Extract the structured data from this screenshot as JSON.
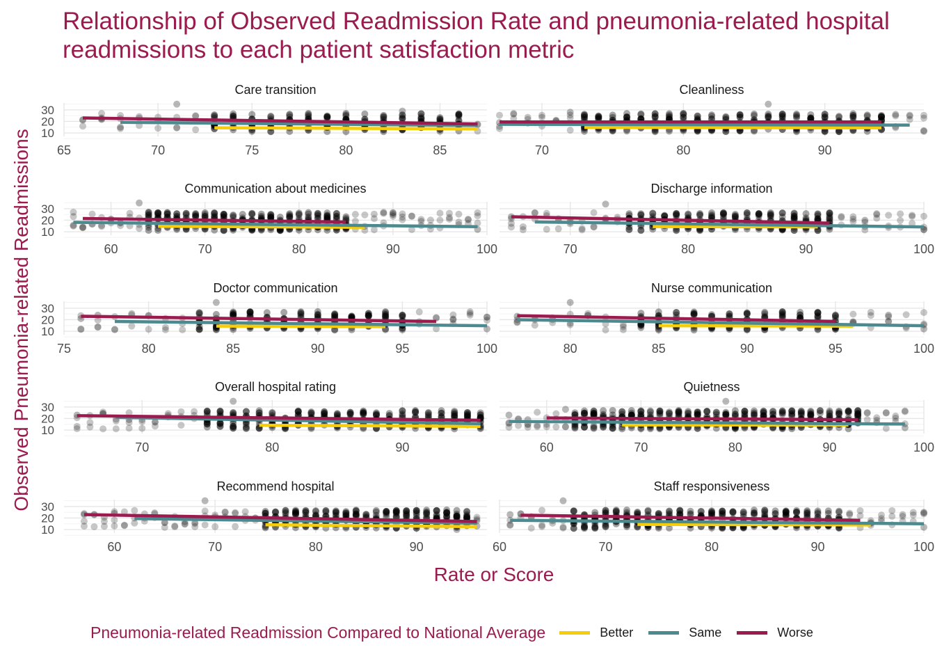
{
  "title_lines": [
    "Relationship of Observed Readmission Rate and pneumonia-related hospital",
    "readmissions to each patient satisfaction metric"
  ],
  "legend": {
    "title": "Pneumonia-related Readmission Compared to National Average",
    "items": [
      {
        "label": "Better",
        "color": "#F5CD0D"
      },
      {
        "label": "Same",
        "color": "#4D8A8F"
      },
      {
        "label": "Worse",
        "color": "#9B1B4F"
      }
    ]
  },
  "colors": {
    "accent": "#9B1B4F",
    "points": "#000000",
    "grid": "#EBEBEB"
  },
  "chart_data": {
    "type": "scatter",
    "title": "Relationship of Observed Readmission Rate and pneumonia-related hospital readmissions to each patient satisfaction metric",
    "xlabel": "Rate or Score",
    "ylabel": "Observed Pneumonia-related Readmissions",
    "grid": true,
    "legend_position": "bottom",
    "y_ticks": [
      10,
      20,
      30
    ],
    "ylim": [
      7,
      36
    ],
    "panels": [
      {
        "title": "Care transition",
        "xlim": [
          65,
          87.5
        ],
        "xticks": [
          65,
          70,
          75,
          80,
          85
        ],
        "points": {
          "x_range": [
            66,
            87
          ],
          "dense_range": [
            73,
            86
          ],
          "outliers": [
            [
              71,
              35
            ],
            [
              83,
              29
            ],
            [
              68,
              15
            ],
            [
              67,
              23
            ],
            [
              86,
              24
            ]
          ]
        },
        "lines": {
          "Better": [
            [
              73,
              14.5
            ],
            [
              87,
              13.5
            ]
          ],
          "Same": [
            [
              68,
              19.2
            ],
            [
              87,
              16.5
            ]
          ],
          "Worse": [
            [
              66,
              23
            ],
            [
              87,
              17.8
            ]
          ]
        }
      },
      {
        "title": "Cleanliness",
        "xlim": [
          67,
          97
        ],
        "xticks": [
          70,
          80,
          90
        ],
        "points": {
          "x_range": [
            67,
            97
          ],
          "dense_range": [
            73,
            94
          ],
          "outliers": [
            [
              86,
              35
            ],
            [
              95,
              26
            ],
            [
              67,
              19
            ],
            [
              97,
              12
            ],
            [
              72,
              28
            ]
          ]
        },
        "lines": {
          "Better": [
            [
              73,
              14.8
            ],
            [
              94,
              14.5
            ]
          ],
          "Same": [
            [
              67,
              17.5
            ],
            [
              96,
              16.8
            ]
          ],
          "Worse": [
            [
              67,
              19.5
            ],
            [
              94,
              19.5
            ]
          ]
        }
      },
      {
        "title": "Communication about medicines",
        "xlim": [
          55,
          100
        ],
        "xticks": [
          60,
          70,
          80,
          90,
          100
        ],
        "points": {
          "x_range": [
            56,
            99
          ],
          "dense_range": [
            64,
            85
          ],
          "outliers": [
            [
              56,
              15
            ],
            [
              99,
              12
            ],
            [
              89,
              26
            ],
            [
              90,
              25
            ],
            [
              63,
              35
            ]
          ]
        },
        "lines": {
          "Better": [
            [
              65,
              14.8
            ],
            [
              87,
              13.8
            ]
          ],
          "Same": [
            [
              56,
              18.2
            ],
            [
              99,
              14.4
            ]
          ],
          "Worse": [
            [
              57,
              21.5
            ],
            [
              85,
              18.5
            ]
          ]
        }
      },
      {
        "title": "Discharge information",
        "xlim": [
          64,
          100
        ],
        "xticks": [
          70,
          80,
          90,
          100
        ],
        "points": {
          "x_range": [
            65,
            100
          ],
          "dense_range": [
            75,
            92
          ],
          "outliers": [
            [
              65,
              23
            ],
            [
              100,
              12
            ],
            [
              95,
              20
            ],
            [
              87,
              25
            ],
            [
              73,
              34
            ]
          ]
        },
        "lines": {
          "Better": [
            [
              77,
              14.5
            ],
            [
              91,
              14.2
            ]
          ],
          "Same": [
            [
              67,
              18.5
            ],
            [
              100,
              14.2
            ]
          ],
          "Worse": [
            [
              65,
              23
            ],
            [
              92,
              17.5
            ]
          ]
        }
      },
      {
        "title": "Doctor communication",
        "xlim": [
          75,
          100
        ],
        "xticks": [
          75,
          80,
          85,
          90,
          95,
          100
        ],
        "points": {
          "x_range": [
            76,
            100
          ],
          "dense_range": [
            83,
            95
          ],
          "outliers": [
            [
              76,
              21
            ],
            [
              84,
              35
            ],
            [
              100,
              12
            ],
            [
              98,
              20
            ],
            [
              77,
              24
            ]
          ]
        },
        "lines": {
          "Better": [
            [
              84,
              14.5
            ],
            [
              94,
              14
            ]
          ],
          "Same": [
            [
              78,
              18.5
            ],
            [
              100,
              14.8
            ]
          ],
          "Worse": [
            [
              76,
              23
            ],
            [
              97,
              18.5
            ]
          ]
        }
      },
      {
        "title": "Nurse communication",
        "xlim": [
          76,
          100
        ],
        "xticks": [
          80,
          85,
          90,
          95,
          100
        ],
        "points": {
          "x_range": [
            77,
            100
          ],
          "dense_range": [
            84,
            95
          ],
          "outliers": [
            [
              80,
              35
            ],
            [
              77,
              23
            ],
            [
              100,
              12
            ],
            [
              98,
              24
            ],
            [
              96,
              18
            ]
          ]
        },
        "lines": {
          "Better": [
            [
              85,
              14.8
            ],
            [
              96,
              14.4
            ]
          ],
          "Same": [
            [
              77,
              20
            ],
            [
              100,
              14.8
            ]
          ],
          "Worse": [
            [
              77,
              23.5
            ],
            [
              95,
              18.5
            ]
          ]
        }
      },
      {
        "title": "Overall hospital rating",
        "xlim": [
          64,
          96.5
        ],
        "xticks": [
          70,
          80,
          90
        ],
        "points": {
          "x_range": [
            65,
            96
          ],
          "dense_range": [
            75,
            96
          ],
          "outliers": [
            [
              77,
              35
            ],
            [
              65,
              23
            ],
            [
              96,
              12
            ],
            [
              67,
              24
            ],
            [
              69,
              19
            ]
          ]
        },
        "lines": {
          "Better": [
            [
              79,
              14.2
            ],
            [
              96,
              13.2
            ]
          ],
          "Same": [
            [
              68,
              21
            ],
            [
              96,
              15.5
            ]
          ],
          "Worse": [
            [
              65,
              22.5
            ],
            [
              96,
              18.5
            ]
          ]
        }
      },
      {
        "title": "Quietness",
        "xlim": [
          55,
          100
        ],
        "xticks": [
          60,
          70,
          80,
          90,
          100
        ],
        "points": {
          "x_range": [
            56,
            98
          ],
          "dense_range": [
            63,
            93
          ],
          "outliers": [
            [
              56,
              23
            ],
            [
              79,
              35
            ],
            [
              98,
              12
            ],
            [
              58,
              19
            ],
            [
              62,
              28
            ]
          ]
        },
        "lines": {
          "Better": [
            [
              68,
              14.5
            ],
            [
              92,
              14.4
            ]
          ],
          "Same": [
            [
              56,
              17.5
            ],
            [
              98,
              15.2
            ]
          ],
          "Worse": [
            [
              60,
              20.5
            ],
            [
              93,
              19
            ]
          ]
        }
      },
      {
        "title": "Recommend hospital",
        "xlim": [
          55,
          97
        ],
        "xticks": [
          60,
          70,
          80,
          90
        ],
        "points": {
          "x_range": [
            57,
            96
          ],
          "dense_range": [
            75,
            95
          ],
          "outliers": [
            [
              69,
              35
            ],
            [
              57,
              23
            ],
            [
              96,
              13
            ],
            [
              94,
              10
            ],
            [
              60,
              24
            ]
          ]
        },
        "lines": {
          "Better": [
            [
              75,
              14.2
            ],
            [
              96,
              12.5
            ]
          ],
          "Same": [
            [
              62,
              19.5
            ],
            [
              96,
              15.5
            ]
          ],
          "Worse": [
            [
              57,
              23
            ],
            [
              96,
              17
            ]
          ]
        }
      },
      {
        "title": "Staff responsiveness",
        "xlim": [
          60,
          100
        ],
        "xticks": [
          60,
          70,
          80,
          90,
          100
        ],
        "points": {
          "x_range": [
            61,
            100
          ],
          "dense_range": [
            67,
            92
          ],
          "outliers": [
            [
              66,
              35
            ],
            [
              61,
              23
            ],
            [
              100,
              12
            ],
            [
              93,
              23
            ],
            [
              95,
              16
            ]
          ]
        },
        "lines": {
          "Better": [
            [
              73,
              14.5
            ],
            [
              95,
              14
            ]
          ],
          "Same": [
            [
              61,
              18
            ],
            [
              100,
              15
            ]
          ],
          "Worse": [
            [
              62,
              22.5
            ],
            [
              94,
              18
            ]
          ]
        }
      }
    ]
  }
}
